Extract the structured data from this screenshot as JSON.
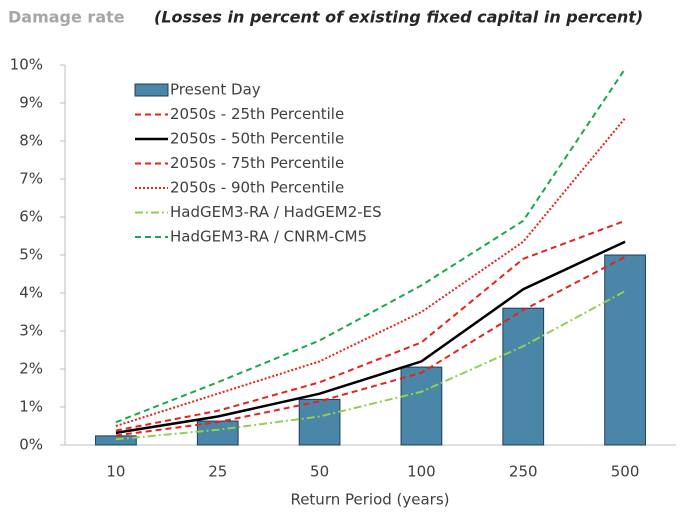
{
  "chart_data": {
    "type": "combo",
    "title": "Damage rate",
    "subtitle": "(Losses in percent of existing fixed capital in percent)",
    "x_label": "Return Period (years)",
    "categories": [
      "10",
      "25",
      "50",
      "100",
      "250",
      "500"
    ],
    "ylim": [
      0,
      10
    ],
    "yticks": [
      {
        "value": 0,
        "label": "0%"
      },
      {
        "value": 1,
        "label": "1%"
      },
      {
        "value": 2,
        "label": "2%"
      },
      {
        "value": 3,
        "label": "3%"
      },
      {
        "value": 4,
        "label": "4%"
      },
      {
        "value": 5,
        "label": "5%"
      },
      {
        "value": 6,
        "label": "6%"
      },
      {
        "value": 7,
        "label": "7%"
      },
      {
        "value": 8,
        "label": "8%"
      },
      {
        "value": 9,
        "label": "9%"
      },
      {
        "value": 10,
        "label": "10%"
      }
    ],
    "legend": "top-left",
    "series": [
      {
        "name": "Present Day",
        "type": "bar",
        "color": "#4a86a8",
        "values": [
          0.24,
          0.63,
          1.2,
          2.05,
          3.6,
          5.0
        ]
      },
      {
        "name": "2050s - 25th Percentile",
        "type": "line",
        "dash": "dashed",
        "color": "#e8221b",
        "values": [
          0.25,
          0.6,
          1.15,
          1.9,
          3.55,
          4.95
        ]
      },
      {
        "name": "2050s - 50th Percentile",
        "type": "line",
        "dash": "solid",
        "color": "#000000",
        "values": [
          0.32,
          0.75,
          1.35,
          2.2,
          4.1,
          5.35
        ]
      },
      {
        "name": "2050s - 75th Percentile",
        "type": "line",
        "dash": "dashed",
        "color": "#e8221b",
        "values": [
          0.38,
          0.9,
          1.65,
          2.7,
          4.9,
          5.9
        ]
      },
      {
        "name": "2050s - 90th Percentile",
        "type": "line",
        "dash": "dotted",
        "color": "#e8221b",
        "values": [
          0.5,
          1.35,
          2.2,
          3.5,
          5.35,
          8.6
        ]
      },
      {
        "name": "HadGEM3-RA / HadGEM2-ES",
        "type": "line",
        "dash": "dashdot",
        "color": "#92d050",
        "values": [
          0.15,
          0.4,
          0.75,
          1.4,
          2.6,
          4.05
        ]
      },
      {
        "name": "HadGEM3-RA / CNRM-CM5",
        "type": "line",
        "dash": "dashed",
        "color": "#1aa84f",
        "values": [
          0.6,
          1.65,
          2.75,
          4.2,
          5.9,
          9.9
        ]
      }
    ]
  }
}
